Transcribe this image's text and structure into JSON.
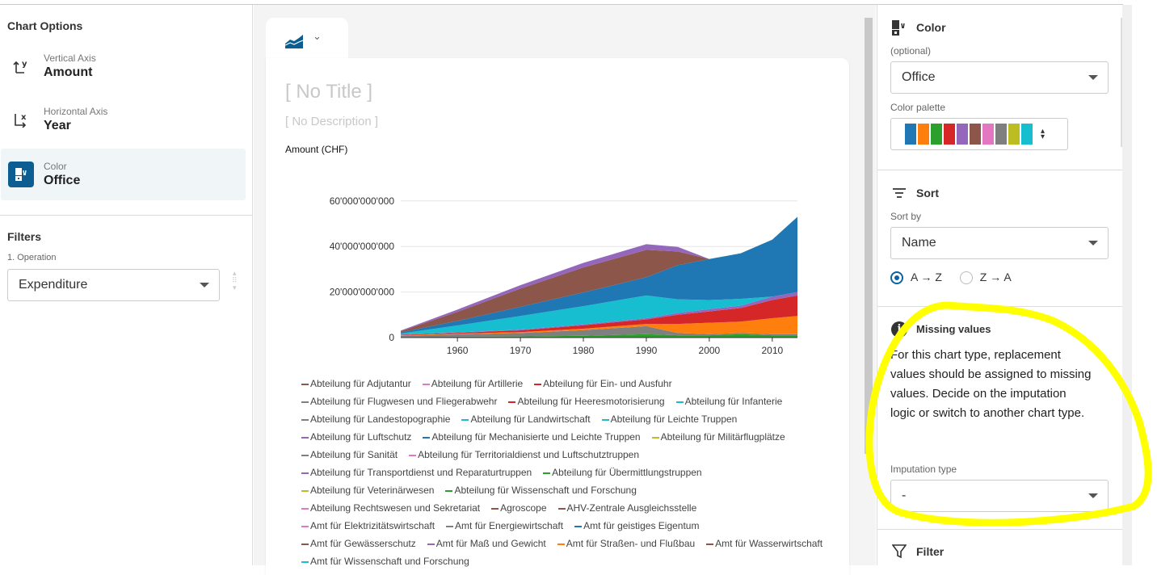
{
  "left": {
    "chart_options_title": "Chart Options",
    "options": [
      {
        "label": "Vertical Axis",
        "value": "Amount",
        "icon": "y-axis-icon"
      },
      {
        "label": "Horizontal Axis",
        "value": "Year",
        "icon": "x-axis-icon"
      },
      {
        "label": "Color",
        "value": "Office",
        "icon": "color-icon",
        "selected": true
      }
    ],
    "filters_title": "Filters",
    "filter": {
      "label": "1. Operation",
      "value": "Expenditure"
    }
  },
  "main": {
    "chart_type_icon": "area-chart-icon",
    "title": "[ No Title ]",
    "description": "[ No Description ]"
  },
  "right": {
    "color": {
      "title": "Color",
      "optional": "(optional)",
      "value": "Office",
      "palette_label": "Color palette",
      "palette": [
        "#1f77b4",
        "#ff7f0e",
        "#2ca02c",
        "#d62728",
        "#9467bd",
        "#8c564b",
        "#e377c2",
        "#7f7f7f",
        "#bcbd22",
        "#17becf"
      ]
    },
    "sort": {
      "title": "Sort",
      "sort_by_label": "Sort by",
      "value": "Name",
      "asc": "A → Z",
      "desc": "Z → A",
      "selected": "asc"
    },
    "missing": {
      "title": "Missing values",
      "text": "For this chart type, replacement values should be assigned to missing values. Decide on the imputation logic or switch to another chart type.",
      "imputation_label": "Imputation type",
      "imputation_value": "-"
    },
    "filter": {
      "title": "Filter"
    },
    "highlight_color": "#ffff00"
  },
  "chart_data": {
    "type": "area",
    "stacked": true,
    "ylabel": "Amount (CHF)",
    "ylim": [
      0,
      70000000000
    ],
    "yticks": [
      "0",
      "20'000'000'000",
      "40'000'000'000",
      "60'000'000'000"
    ],
    "ytick_values": [
      0,
      20000000000,
      40000000000,
      60000000000
    ],
    "xticks": [
      1960,
      1970,
      1980,
      1990,
      2000,
      2010
    ],
    "xlim": [
      1951,
      2014
    ],
    "grid": true,
    "x": [
      1951,
      1960,
      1970,
      1980,
      1990,
      1995,
      2000,
      2005,
      2010,
      2014
    ],
    "series": [
      {
        "color": "#2ca02c",
        "values": [
          300000000.0,
          400000000.0,
          500000000.0,
          800000000.0,
          1500000000.0,
          1000000000.0,
          1000000000.0,
          1500000000.0,
          1000000000.0,
          1000000000.0
        ]
      },
      {
        "color": "#7f7f7f",
        "values": [
          500000000.0,
          1000000000.0,
          1500000000.0,
          2500000000.0,
          3500000000.0,
          1000000000.0,
          500000000.0,
          500000000.0,
          500000000.0,
          500000000.0
        ]
      },
      {
        "color": "#ff7f0e",
        "values": [
          200000000.0,
          300000000.0,
          400000000.0,
          600000000.0,
          1000000000.0,
          4000000000.0,
          5000000000.0,
          5000000000.0,
          7000000000.0,
          8000000000.0
        ]
      },
      {
        "color": "#d62728",
        "values": [
          200000000.0,
          400000000.0,
          800000000.0,
          1500000000.0,
          2000000000.0,
          4000000000.0,
          5000000000.0,
          6000000000.0,
          8000000000.0,
          9000000000.0
        ]
      },
      {
        "color": "#9467bd",
        "values": [
          100000000.0,
          200000000.0,
          300000000.0,
          400000000.0,
          500000000.0,
          800000000.0,
          1000000000.0,
          1000000000.0,
          1500000000.0,
          1500000000.0
        ]
      },
      {
        "color": "#17becf",
        "values": [
          500000000.0,
          3000000000.0,
          6000000000.0,
          8000000000.0,
          10000000000.0,
          6000000000.0,
          4000000000.0,
          3000000000.0,
          0,
          0
        ]
      },
      {
        "color": "#1f77b4",
        "values": [
          500000000.0,
          2000000000.0,
          4000000000.0,
          6000000000.0,
          8000000000.0,
          15000000000.0,
          18000000000.0,
          20000000000.0,
          25000000000.0,
          33000000000.0
        ]
      },
      {
        "color": "#8c564b",
        "values": [
          500000000.0,
          4000000000.0,
          8000000000.0,
          11000000000.0,
          12000000000.0,
          6000000000.0,
          0,
          0,
          0,
          0
        ]
      },
      {
        "color": "#9467bd",
        "values": [
          300000000.0,
          1000000000.0,
          1500000000.0,
          2000000000.0,
          2500000000.0,
          2000000000.0,
          0,
          0,
          0,
          0
        ]
      }
    ],
    "legend": [
      {
        "name": "Abteilung für Adjutantur",
        "color": "#8c564b"
      },
      {
        "name": "Abteilung für Artillerie",
        "color": "#e377c2"
      },
      {
        "name": "Abteilung für Ein- und Ausfuhr",
        "color": "#d62728"
      },
      {
        "name": "Abteilung für Flugwesen und Fliegerabwehr",
        "color": "#7f7f7f"
      },
      {
        "name": "Abteilung für Heeresmotorisierung",
        "color": "#d62728"
      },
      {
        "name": "Abteilung für Infanterie",
        "color": "#17becf"
      },
      {
        "name": "Abteilung für Landestopographie",
        "color": "#7f7f7f"
      },
      {
        "name": "Abteilung für Landwirtschaft",
        "color": "#17becf"
      },
      {
        "name": "Abteilung für Leichte Truppen",
        "color": "#17becf"
      },
      {
        "name": "Abteilung für Luftschutz",
        "color": "#9467bd"
      },
      {
        "name": "Abteilung für Mechanisierte und Leichte Truppen",
        "color": "#1f77b4"
      },
      {
        "name": "Abteilung für Militärflugplätze",
        "color": "#bcbd22"
      },
      {
        "name": "Abteilung für Sanität",
        "color": "#7f7f7f"
      },
      {
        "name": "Abteilung für Territorialdienst und Luftschutztruppen",
        "color": "#e377c2"
      },
      {
        "name": "Abteilung für Transportdienst und Reparaturtruppen",
        "color": "#9467bd"
      },
      {
        "name": "Abteilung für Übermittlungstruppen",
        "color": "#2ca02c"
      },
      {
        "name": "Abteilung für Veterinärwesen",
        "color": "#bcbd22"
      },
      {
        "name": "Abteilung für Wissenschaft und Forschung",
        "color": "#2ca02c"
      },
      {
        "name": "Abteilung Rechtswesen und Sekretariat",
        "color": "#e377c2"
      },
      {
        "name": "Agroscope",
        "color": "#8c564b"
      },
      {
        "name": "AHV-Zentrale Ausgleichsstelle",
        "color": "#8c564b"
      },
      {
        "name": "Amt für Elektrizitätswirtschaft",
        "color": "#e377c2"
      },
      {
        "name": "Amt für Energiewirtschaft",
        "color": "#7f7f7f"
      },
      {
        "name": "Amt für geistiges Eigentum",
        "color": "#1f77b4"
      },
      {
        "name": "Amt für Gewässerschutz",
        "color": "#8c564b"
      },
      {
        "name": "Amt für Maß und Gewicht",
        "color": "#9467bd"
      },
      {
        "name": "Amt für Straßen- und Flußbau",
        "color": "#ff7f0e"
      },
      {
        "name": "Amt für Wasserwirtschaft",
        "color": "#8c564b"
      },
      {
        "name": "Amt für Wissenschaft und Forschung",
        "color": "#17becf"
      }
    ]
  }
}
